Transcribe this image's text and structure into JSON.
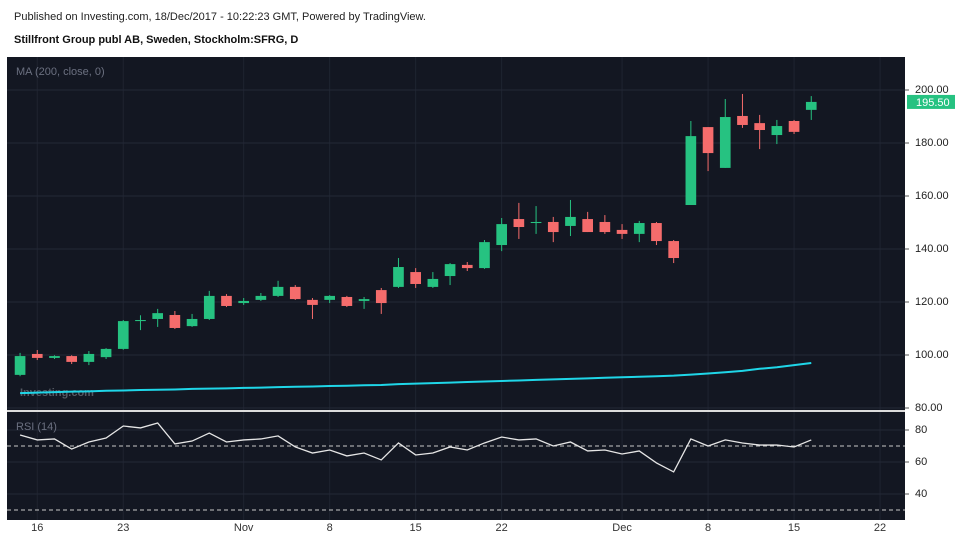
{
  "header": {
    "published": "Published on Investing.com, 18/Dec/2017 - 10:22:23 GMT, Powered by TradingView.",
    "symbol": "Stillfront Group publ AB, Sweden, Stockholm:SFRG, D"
  },
  "chart_data": [
    {
      "type": "candlestick",
      "title": "MA (200, close, 0)",
      "watermark": "Investing.com",
      "up_color": "#26c281",
      "down_color": "#f56c6c",
      "grid": true,
      "open": [
        92.5,
        100.4,
        98.9,
        99.6,
        97.4,
        99.2,
        102.3,
        112.8,
        113.6,
        115.1,
        110.9,
        113.6,
        122.3,
        119.6,
        120.8,
        122.3,
        125.7,
        120.8,
        120.8,
        121.9,
        120.4,
        124.5,
        125.7,
        131.3,
        125.7,
        129.8,
        134,
        132.8,
        141.5,
        151.3,
        149.8,
        150.2,
        148.7,
        151.3,
        150.2,
        147.2,
        145.7,
        149.8,
        143,
        156.6,
        186,
        170.6,
        190.2,
        187.5,
        183,
        188.3,
        192.5
      ],
      "high": [
        100.8,
        101.9,
        99.9,
        99.9,
        101.5,
        102.6,
        113.2,
        115,
        117.4,
        116.6,
        115.5,
        124.2,
        123,
        121.5,
        123.4,
        128,
        126.4,
        121.5,
        122.6,
        122.3,
        121.9,
        125.3,
        136.6,
        132.8,
        131.3,
        134.7,
        135.1,
        143.4,
        151.7,
        157.4,
        156.2,
        152.1,
        158.5,
        154,
        152.8,
        149.4,
        150.6,
        150.2,
        143.4,
        188.3,
        186,
        196.6,
        198.5,
        190.6,
        188.7,
        188.7,
        197.7
      ],
      "low": [
        92,
        98.1,
        98.5,
        96.6,
        96.2,
        98.5,
        102,
        109.4,
        110.6,
        109.8,
        110.6,
        113.2,
        118.1,
        118.9,
        120.4,
        121.9,
        120.8,
        113.6,
        119.6,
        118.1,
        117.4,
        115.5,
        125.3,
        125.3,
        125.3,
        126.4,
        131.7,
        132.5,
        139.2,
        143.8,
        145.7,
        142.6,
        144.9,
        146.4,
        145.7,
        143.8,
        142.6,
        141.5,
        134.7,
        156.6,
        169.4,
        170.6,
        185.7,
        177.7,
        179.6,
        183.4,
        188.7
      ],
      "close": [
        99.6,
        98.9,
        99.6,
        97.4,
        100.4,
        102.3,
        112.8,
        113.2,
        115.8,
        110.2,
        113.6,
        122.3,
        118.5,
        120.4,
        122.3,
        125.7,
        121.1,
        118.9,
        122.3,
        118.5,
        121.1,
        119.6,
        133.2,
        126.8,
        128.7,
        134.3,
        132.8,
        142.6,
        149.4,
        148.3,
        150.2,
        146.4,
        152.1,
        146.4,
        146.4,
        145.7,
        149.8,
        143,
        136.6,
        182.6,
        176.2,
        189.8,
        186.8,
        184.9,
        186.4,
        184.2,
        195.5
      ],
      "series": [
        {
          "name": "MA (200, close, 0)",
          "color": "#1fd6e8",
          "values": [
            85.6,
            85.8,
            86.0,
            86.2,
            86.3,
            86.5,
            86.6,
            86.8,
            86.9,
            87.0,
            87.2,
            87.3,
            87.4,
            87.6,
            87.7,
            87.9,
            88.0,
            88.1,
            88.3,
            88.4,
            88.6,
            88.7,
            89.0,
            89.2,
            89.4,
            89.6,
            89.8,
            90.0,
            90.2,
            90.4,
            90.6,
            90.8,
            91.0,
            91.2,
            91.4,
            91.6,
            91.8,
            92.0,
            92.2,
            92.6,
            93.0,
            93.5,
            94.0,
            94.8,
            95.4,
            96.2,
            97
          ]
        }
      ],
      "last_price": {
        "value": 195.5,
        "label": "195.50"
      },
      "xlim": [
        -0.76,
        51.45
      ],
      "ylim": [
        79.25,
        212.45
      ],
      "yticks": [
        {
          "value": 80,
          "label": "80.00"
        },
        {
          "value": 100,
          "label": "100.00"
        },
        {
          "value": 120,
          "label": "120.00"
        },
        {
          "value": 140,
          "label": "140.00"
        },
        {
          "value": 160,
          "label": "160.00"
        },
        {
          "value": 180,
          "label": "180.00"
        },
        {
          "value": 200,
          "label": "200.00"
        }
      ]
    },
    {
      "type": "line",
      "title": "RSI (14)",
      "grid": true,
      "levels": [
        30,
        70
      ],
      "series": [
        {
          "name": "RSI (14)",
          "color": "#e6e6e6",
          "values": [
            76.9,
            73.8,
            74.4,
            68.1,
            72.5,
            75,
            82.5,
            81.3,
            84.4,
            71.3,
            73.1,
            78.1,
            72.5,
            73.8,
            74.4,
            76.3,
            69.4,
            65.6,
            67.5,
            63.8,
            65.6,
            61.3,
            71.9,
            64.4,
            65.6,
            69.4,
            67.5,
            71.9,
            75.6,
            73.8,
            74.4,
            70,
            72.5,
            66.9,
            67.5,
            65,
            66.9,
            59.4,
            53.8,
            74.4,
            70,
            73.8,
            71.9,
            70.6,
            70.6,
            69.4,
            73.8
          ]
        }
      ],
      "xlim": [
        -0.76,
        51.45
      ],
      "xticks": [
        {
          "value": 1,
          "label": "16"
        },
        {
          "value": 6,
          "label": "23"
        },
        {
          "value": 13,
          "label": "Nov"
        },
        {
          "value": 18,
          "label": "8"
        },
        {
          "value": 23,
          "label": "15"
        },
        {
          "value": 28,
          "label": "22"
        },
        {
          "value": 35,
          "label": "Dec"
        },
        {
          "value": 40,
          "label": "8"
        },
        {
          "value": 45,
          "label": "15"
        },
        {
          "value": 50,
          "label": "22"
        }
      ],
      "ylim": [
        23.75,
        91.25
      ],
      "yticks": [
        40,
        60,
        80
      ]
    }
  ]
}
